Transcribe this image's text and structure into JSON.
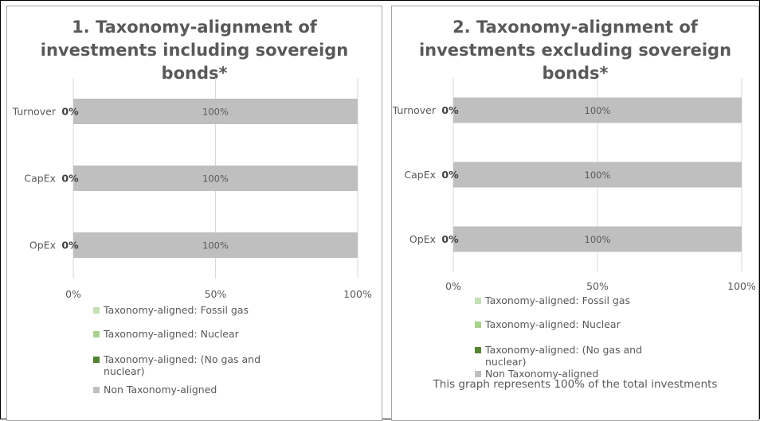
{
  "chart_data": [
    {
      "type": "bar",
      "orientation": "horizontal",
      "stacked": true,
      "title_lines": [
        "1. Taxonomy-alignment of",
        "investments including sovereign",
        "bonds*"
      ],
      "categories": [
        "Turnover",
        "CapEx",
        "OpEx"
      ],
      "series": [
        {
          "name": "Taxonomy-aligned: Fossil gas",
          "values": [
            0,
            0,
            0
          ]
        },
        {
          "name": "Taxonomy-aligned: Nuclear",
          "values": [
            0,
            0,
            0
          ]
        },
        {
          "name": "Taxonomy-aligned: (No gas and nuclear)",
          "values": [
            0,
            0,
            0
          ]
        },
        {
          "name": "Non Taxonomy-aligned",
          "values": [
            100,
            100,
            100
          ]
        }
      ],
      "aligned_labels": [
        "0%",
        "0%",
        "0%"
      ],
      "bar_labels": [
        "100%",
        "100%",
        "100%"
      ],
      "xlim": [
        0,
        100
      ],
      "x_ticks": [
        "0%",
        "50%",
        "100%"
      ],
      "grid": true,
      "legend_position": "bottom"
    },
    {
      "type": "bar",
      "orientation": "horizontal",
      "stacked": true,
      "title_lines": [
        "2. Taxonomy-alignment of",
        "investments excluding sovereign",
        "bonds*"
      ],
      "categories": [
        "Turnover",
        "CapEx",
        "OpEx"
      ],
      "series": [
        {
          "name": "Taxonomy-aligned: Fossil gas",
          "values": [
            0,
            0,
            0
          ]
        },
        {
          "name": "Taxonomy-aligned: Nuclear",
          "values": [
            0,
            0,
            0
          ]
        },
        {
          "name": "Taxonomy-aligned: (No gas and nuclear)",
          "values": [
            0,
            0,
            0
          ]
        },
        {
          "name": "Non Taxonomy-aligned",
          "values": [
            100,
            100,
            100
          ]
        }
      ],
      "aligned_labels": [
        "0%",
        "0%",
        "0%"
      ],
      "bar_labels": [
        "100%",
        "100%",
        "100%"
      ],
      "xlim": [
        0,
        100
      ],
      "x_ticks": [
        "0%",
        "50%",
        "100%"
      ],
      "grid": true,
      "legend_position": "bottom",
      "note": "This graph represents 100% of the total investments"
    }
  ],
  "legend": [
    {
      "label_lines": [
        "Taxonomy-aligned: Fossil gas"
      ],
      "color": "#c5e0b4"
    },
    {
      "label_lines": [
        "Taxonomy-aligned: Nuclear"
      ],
      "color": "#a9d18e"
    },
    {
      "label_lines": [
        "Taxonomy-aligned: (No gas and",
        "nuclear)"
      ],
      "color": "#548235"
    },
    {
      "label_lines": [
        "Non Taxonomy-aligned"
      ],
      "color": "#bfbfbf"
    }
  ],
  "colors": {
    "non_aligned_bar": "#bfbfbf",
    "gridline": "#d9d9d9",
    "text": "#595959"
  }
}
